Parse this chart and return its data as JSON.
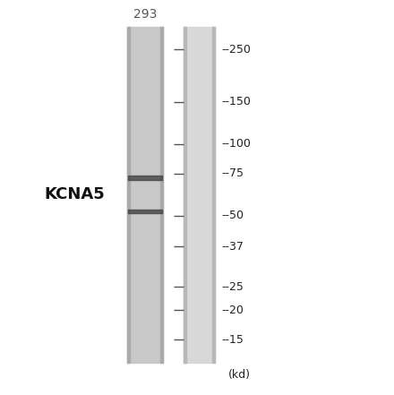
{
  "background_color": "#ffffff",
  "sample_lane_color": "#c8c8c8",
  "marker_lane_color": "#d8d8d8",
  "band_color": "#4a4a4a",
  "label_text": "KCNA5",
  "lane_label": "293",
  "marker_labels": [
    "250",
    "150",
    "100",
    "75",
    "50",
    "37",
    "25",
    "20",
    "15"
  ],
  "marker_positions": [
    250,
    150,
    100,
    75,
    50,
    37,
    25,
    20,
    15
  ],
  "kd_label": "(kd)",
  "band1_kd": 72,
  "band2_kd": 52,
  "fig_width": 4.4,
  "fig_height": 4.41,
  "dpi": 100
}
